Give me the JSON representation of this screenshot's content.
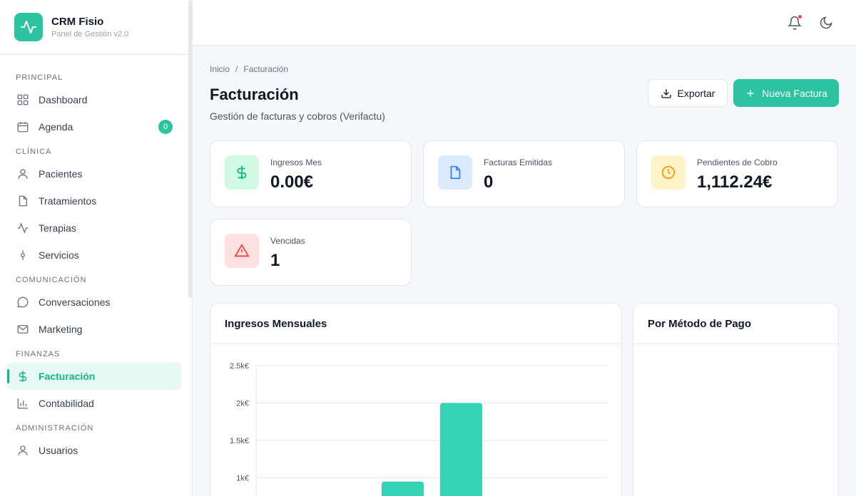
{
  "brand": {
    "title": "CRM Fisio",
    "subtitle": "Panel de Gestión v2.0"
  },
  "sidebar": {
    "sections": [
      {
        "label": "PRINCIPAL",
        "items": [
          {
            "label": "Dashboard",
            "icon": "grid-icon"
          },
          {
            "label": "Agenda",
            "icon": "calendar-icon",
            "badge": "0"
          }
        ]
      },
      {
        "label": "CLÍNICA",
        "items": [
          {
            "label": "Pacientes",
            "icon": "user-icon"
          },
          {
            "label": "Tratamientos",
            "icon": "file-icon"
          },
          {
            "label": "Terapias",
            "icon": "activity-icon"
          },
          {
            "label": "Servicios",
            "icon": "commit-icon"
          }
        ]
      },
      {
        "label": "COMUNICACIÓN",
        "items": [
          {
            "label": "Conversaciones",
            "icon": "chat-icon"
          },
          {
            "label": "Marketing",
            "icon": "mail-icon"
          }
        ]
      },
      {
        "label": "FINANZAS",
        "items": [
          {
            "label": "Facturación",
            "icon": "dollar-icon",
            "active": true
          },
          {
            "label": "Contabilidad",
            "icon": "bar-chart-icon"
          }
        ]
      },
      {
        "label": "ADMINISTRACIÓN",
        "items": [
          {
            "label": "Usuarios",
            "icon": "user-icon"
          }
        ]
      }
    ]
  },
  "topbar": {
    "icons": [
      "bell-icon",
      "moon-icon"
    ]
  },
  "breadcrumb": {
    "home": "Inicio",
    "separator": "/",
    "current": "Facturación"
  },
  "page": {
    "title": "Facturación",
    "subtitle": "Gestión de facturas y cobros (Verifactu)"
  },
  "actions": {
    "export_label": "Exportar",
    "new_label": "Nueva Factura"
  },
  "stats": [
    {
      "label": "Ingresos Mes",
      "value": "0.00€",
      "icon": "dollar-icon",
      "bg": "#d1fae5",
      "color": "#10b981"
    },
    {
      "label": "Facturas Emitidas",
      "value": "0",
      "icon": "document-icon",
      "bg": "#dbeafe",
      "color": "#3b82f6"
    },
    {
      "label": "Pendientes de Cobro",
      "value": "1,112.24€",
      "icon": "clock-icon",
      "bg": "#fef3c7",
      "color": "#f59e0b"
    },
    {
      "label": "Vencidas",
      "value": "1",
      "icon": "alert-triangle-icon",
      "bg": "#fee2e2",
      "color": "#ef4444"
    }
  ],
  "panels": {
    "monthly_title": "Ingresos Mensuales",
    "payment_title": "Por Método de Pago"
  },
  "chart_data": {
    "type": "bar",
    "title": "Ingresos Mensuales",
    "yticks": [
      "2.5k€",
      "2k€",
      "1.5k€",
      "1k€"
    ],
    "ylim": [
      0,
      2500
    ],
    "grid": true,
    "values": [
      950,
      2000
    ],
    "bar_color": "#34d3b7"
  },
  "colors": {
    "accent": "#2cc4a0",
    "accent_dark": "#10b981"
  }
}
